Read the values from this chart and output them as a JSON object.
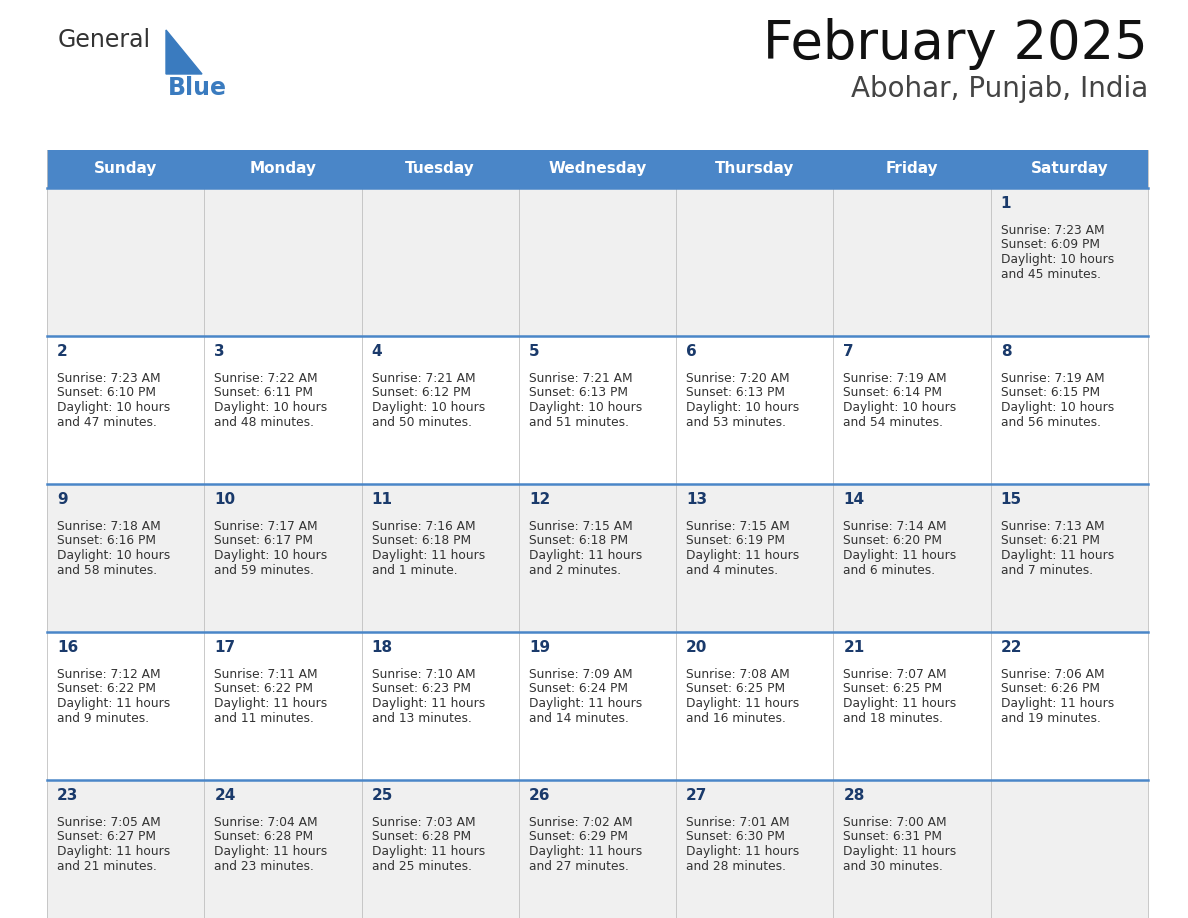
{
  "title": "February 2025",
  "subtitle": "Abohar, Punjab, India",
  "header_bg": "#4a86c8",
  "header_text_color": "#ffffff",
  "day_names": [
    "Sunday",
    "Monday",
    "Tuesday",
    "Wednesday",
    "Thursday",
    "Friday",
    "Saturday"
  ],
  "bg_color": "#ffffff",
  "cell_bg_row0": "#f0f0f0",
  "cell_bg_row1": "#ffffff",
  "cell_bg_row2": "#f0f0f0",
  "cell_bg_row3": "#ffffff",
  "cell_bg_row4": "#f0f0f0",
  "date_color": "#1a3a6b",
  "info_color": "#333333",
  "border_color": "#4a86c8",
  "grid_color": "#c0c0c0",
  "logo_text1_color": "#333333",
  "logo_text2_color": "#3a7bbf",
  "logo_triangle_color": "#3a7bbf",
  "title_color": "#111111",
  "subtitle_color": "#444444",
  "calendar": [
    [
      null,
      null,
      null,
      null,
      null,
      null,
      {
        "day": 1,
        "sunrise": "7:23 AM",
        "sunset": "6:09 PM",
        "daylight": "10 hours and 45 minutes."
      }
    ],
    [
      {
        "day": 2,
        "sunrise": "7:23 AM",
        "sunset": "6:10 PM",
        "daylight": "10 hours and 47 minutes."
      },
      {
        "day": 3,
        "sunrise": "7:22 AM",
        "sunset": "6:11 PM",
        "daylight": "10 hours and 48 minutes."
      },
      {
        "day": 4,
        "sunrise": "7:21 AM",
        "sunset": "6:12 PM",
        "daylight": "10 hours and 50 minutes."
      },
      {
        "day": 5,
        "sunrise": "7:21 AM",
        "sunset": "6:13 PM",
        "daylight": "10 hours and 51 minutes."
      },
      {
        "day": 6,
        "sunrise": "7:20 AM",
        "sunset": "6:13 PM",
        "daylight": "10 hours and 53 minutes."
      },
      {
        "day": 7,
        "sunrise": "7:19 AM",
        "sunset": "6:14 PM",
        "daylight": "10 hours and 54 minutes."
      },
      {
        "day": 8,
        "sunrise": "7:19 AM",
        "sunset": "6:15 PM",
        "daylight": "10 hours and 56 minutes."
      }
    ],
    [
      {
        "day": 9,
        "sunrise": "7:18 AM",
        "sunset": "6:16 PM",
        "daylight": "10 hours and 58 minutes."
      },
      {
        "day": 10,
        "sunrise": "7:17 AM",
        "sunset": "6:17 PM",
        "daylight": "10 hours and 59 minutes."
      },
      {
        "day": 11,
        "sunrise": "7:16 AM",
        "sunset": "6:18 PM",
        "daylight": "11 hours and 1 minute."
      },
      {
        "day": 12,
        "sunrise": "7:15 AM",
        "sunset": "6:18 PM",
        "daylight": "11 hours and 2 minutes."
      },
      {
        "day": 13,
        "sunrise": "7:15 AM",
        "sunset": "6:19 PM",
        "daylight": "11 hours and 4 minutes."
      },
      {
        "day": 14,
        "sunrise": "7:14 AM",
        "sunset": "6:20 PM",
        "daylight": "11 hours and 6 minutes."
      },
      {
        "day": 15,
        "sunrise": "7:13 AM",
        "sunset": "6:21 PM",
        "daylight": "11 hours and 7 minutes."
      }
    ],
    [
      {
        "day": 16,
        "sunrise": "7:12 AM",
        "sunset": "6:22 PM",
        "daylight": "11 hours and 9 minutes."
      },
      {
        "day": 17,
        "sunrise": "7:11 AM",
        "sunset": "6:22 PM",
        "daylight": "11 hours and 11 minutes."
      },
      {
        "day": 18,
        "sunrise": "7:10 AM",
        "sunset": "6:23 PM",
        "daylight": "11 hours and 13 minutes."
      },
      {
        "day": 19,
        "sunrise": "7:09 AM",
        "sunset": "6:24 PM",
        "daylight": "11 hours and 14 minutes."
      },
      {
        "day": 20,
        "sunrise": "7:08 AM",
        "sunset": "6:25 PM",
        "daylight": "11 hours and 16 minutes."
      },
      {
        "day": 21,
        "sunrise": "7:07 AM",
        "sunset": "6:25 PM",
        "daylight": "11 hours and 18 minutes."
      },
      {
        "day": 22,
        "sunrise": "7:06 AM",
        "sunset": "6:26 PM",
        "daylight": "11 hours and 19 minutes."
      }
    ],
    [
      {
        "day": 23,
        "sunrise": "7:05 AM",
        "sunset": "6:27 PM",
        "daylight": "11 hours and 21 minutes."
      },
      {
        "day": 24,
        "sunrise": "7:04 AM",
        "sunset": "6:28 PM",
        "daylight": "11 hours and 23 minutes."
      },
      {
        "day": 25,
        "sunrise": "7:03 AM",
        "sunset": "6:28 PM",
        "daylight": "11 hours and 25 minutes."
      },
      {
        "day": 26,
        "sunrise": "7:02 AM",
        "sunset": "6:29 PM",
        "daylight": "11 hours and 27 minutes."
      },
      {
        "day": 27,
        "sunrise": "7:01 AM",
        "sunset": "6:30 PM",
        "daylight": "11 hours and 28 minutes."
      },
      {
        "day": 28,
        "sunrise": "7:00 AM",
        "sunset": "6:31 PM",
        "daylight": "11 hours and 30 minutes."
      },
      null
    ]
  ]
}
